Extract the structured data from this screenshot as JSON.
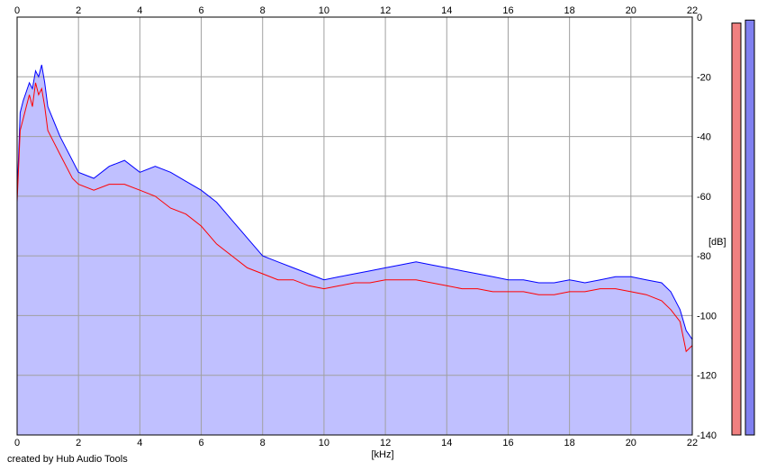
{
  "chart_data": {
    "type": "area",
    "xlabel": "[kHz]",
    "ylabel": "[dB]",
    "xlim": [
      0,
      22
    ],
    "ylim": [
      -140,
      0
    ],
    "x_ticks": [
      "0",
      "2",
      "4",
      "6",
      "8",
      "10",
      "12",
      "14",
      "16",
      "18",
      "20",
      "22"
    ],
    "y_ticks": [
      "0",
      "-20",
      "-40",
      "-60",
      "-80",
      "-100",
      "-120",
      "-140"
    ],
    "grid": true,
    "fill_color": "#c0c0ff",
    "series": [
      {
        "color": "#0000ff",
        "x": [
          0,
          0.1,
          0.2,
          0.3,
          0.4,
          0.5,
          0.6,
          0.7,
          0.8,
          0.9,
          1.0,
          1.2,
          1.4,
          1.6,
          1.8,
          2.0,
          2.5,
          3.0,
          3.5,
          4.0,
          4.5,
          5.0,
          5.5,
          6.0,
          6.5,
          7.0,
          7.5,
          8.0,
          8.5,
          9.0,
          9.5,
          10.0,
          10.5,
          11.0,
          11.5,
          12.0,
          12.5,
          13.0,
          13.5,
          14.0,
          14.5,
          15.0,
          15.5,
          16.0,
          16.5,
          17.0,
          17.5,
          18.0,
          18.5,
          19.0,
          19.5,
          20.0,
          20.5,
          21.0,
          21.3,
          21.6,
          21.8,
          22.0
        ],
        "y": [
          -60,
          -32,
          -28,
          -25,
          -22,
          -24,
          -18,
          -20,
          -16,
          -22,
          -30,
          -35,
          -40,
          -44,
          -48,
          -52,
          -54,
          -50,
          -48,
          -52,
          -50,
          -52,
          -55,
          -58,
          -62,
          -68,
          -74,
          -80,
          -82,
          -84,
          -86,
          -88,
          -87,
          -86,
          -85,
          -84,
          -83,
          -82,
          -83,
          -84,
          -85,
          -86,
          -87,
          -88,
          -88,
          -89,
          -89,
          -88,
          -89,
          -88,
          -87,
          -87,
          -88,
          -89,
          -92,
          -98,
          -105,
          -108
        ]
      },
      {
        "color": "#ff0000",
        "x": [
          0,
          0.1,
          0.2,
          0.3,
          0.4,
          0.5,
          0.6,
          0.7,
          0.8,
          0.9,
          1.0,
          1.2,
          1.4,
          1.6,
          1.8,
          2.0,
          2.5,
          3.0,
          3.5,
          4.0,
          4.5,
          5.0,
          5.5,
          6.0,
          6.5,
          7.0,
          7.5,
          8.0,
          8.5,
          9.0,
          9.5,
          10.0,
          10.5,
          11.0,
          11.5,
          12.0,
          12.5,
          13.0,
          13.5,
          14.0,
          14.5,
          15.0,
          15.5,
          16.0,
          16.5,
          17.0,
          17.5,
          18.0,
          18.5,
          19.0,
          19.5,
          20.0,
          20.5,
          21.0,
          21.3,
          21.6,
          21.8,
          22.0
        ],
        "y": [
          -62,
          -38,
          -34,
          -30,
          -26,
          -30,
          -22,
          -26,
          -24,
          -30,
          -38,
          -42,
          -46,
          -50,
          -54,
          -56,
          -58,
          -56,
          -56,
          -58,
          -60,
          -64,
          -66,
          -70,
          -76,
          -80,
          -84,
          -86,
          -88,
          -88,
          -90,
          -91,
          -90,
          -89,
          -89,
          -88,
          -88,
          -88,
          -89,
          -90,
          -91,
          -91,
          -92,
          -92,
          -92,
          -93,
          -93,
          -92,
          -92,
          -91,
          -91,
          -92,
          -93,
          -95,
          -98,
          -102,
          -112,
          -110
        ]
      }
    ],
    "meters": [
      {
        "color": "#f08080",
        "value": -2
      },
      {
        "color": "#8080f0",
        "value": -1
      }
    ]
  },
  "footer": {
    "credit": "created by Hub Audio Tools"
  }
}
